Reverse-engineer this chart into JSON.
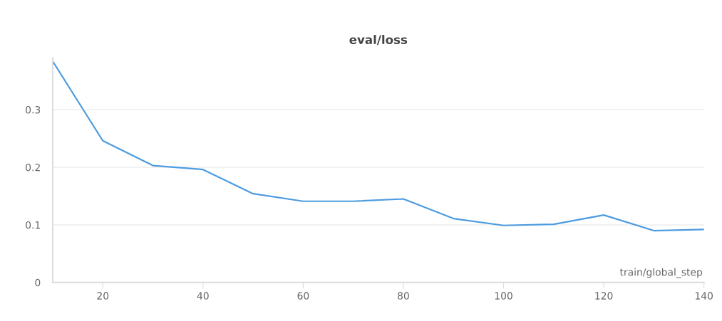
{
  "chart_data": {
    "type": "line",
    "title": "eval/loss",
    "xlabel": "train/global_step",
    "x": [
      10,
      20,
      30,
      40,
      50,
      60,
      70,
      80,
      90,
      100,
      110,
      120,
      130,
      140
    ],
    "series": [
      {
        "color": "#4c9be0",
        "values": [
          0.384,
          0.246,
          0.203,
          0.196,
          0.154,
          0.141,
          0.141,
          0.145,
          0.111,
          0.099,
          0.101,
          0.117,
          0.09,
          0.092
        ]
      }
    ],
    "xlim": [
      10,
      140
    ],
    "xticks": [
      20,
      40,
      60,
      80,
      100,
      120,
      140
    ],
    "ylim": [
      0,
      0.39
    ],
    "yticks": [
      0,
      0.1,
      0.2,
      0.3
    ],
    "grid": "y",
    "marker": "none",
    "line_style": "solid"
  }
}
